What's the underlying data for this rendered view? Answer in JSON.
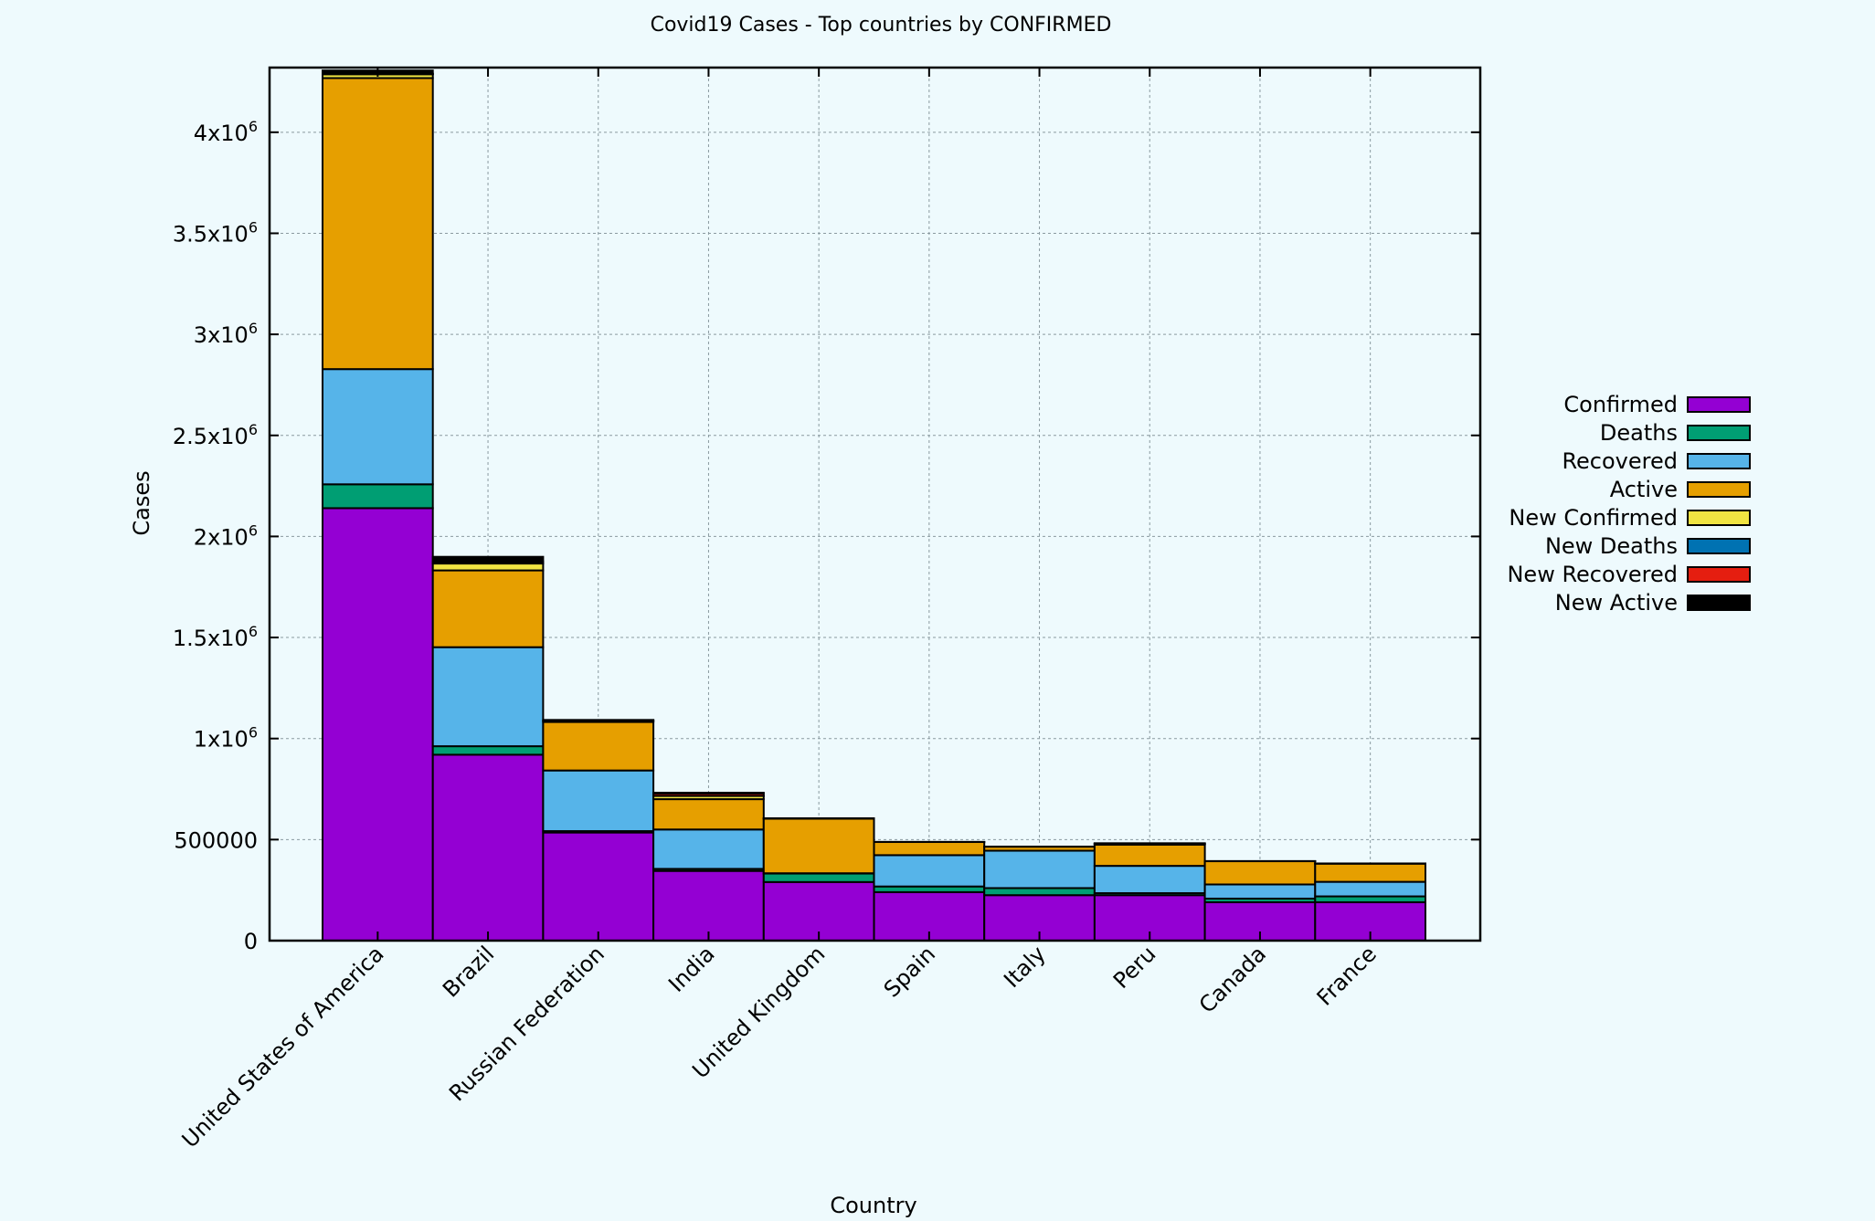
{
  "chart_data": {
    "type": "bar",
    "stacked": true,
    "title": "Covid19 Cases - Top countries by CONFIRMED",
    "xlabel": "Country",
    "ylabel": "Cases",
    "ylim": [
      0,
      4320000
    ],
    "grid": true,
    "legend_position": "right",
    "categories": [
      "United States of America",
      "Brazil",
      "Russian Federation",
      "India",
      "United Kingdom",
      "Spain",
      "Italy",
      "Peru",
      "Canada",
      "France"
    ],
    "y_ticks": [
      {
        "value": 0,
        "label": "0",
        "sup": ""
      },
      {
        "value": 500000,
        "label": "500000",
        "sup": ""
      },
      {
        "value": 1000000,
        "label": "1x10",
        "sup": "6"
      },
      {
        "value": 1500000,
        "label": "1.5x10",
        "sup": "6"
      },
      {
        "value": 2000000,
        "label": "2x10",
        "sup": "6"
      },
      {
        "value": 2500000,
        "label": "2.5x10",
        "sup": "6"
      },
      {
        "value": 3000000,
        "label": "3x10",
        "sup": "6"
      },
      {
        "value": 3500000,
        "label": "3.5x10",
        "sup": "6"
      },
      {
        "value": 4000000,
        "label": "4x10",
        "sup": "6"
      }
    ],
    "series": [
      {
        "name": "Confirmed",
        "color": "#9400d3",
        "values": [
          2140000,
          920000,
          535000,
          345000,
          290000,
          240000,
          225000,
          225000,
          190000,
          190000
        ]
      },
      {
        "name": "Deaths",
        "color": "#009e73",
        "values": [
          118000,
          42000,
          7000,
          10000,
          42000,
          28000,
          35000,
          10000,
          18000,
          29000
        ]
      },
      {
        "name": "Recovered",
        "color": "#56b4e9",
        "values": [
          570000,
          490000,
          300000,
          195000,
          1400,
          155000,
          185000,
          135000,
          70000,
          72000
        ]
      },
      {
        "name": "Active",
        "color": "#e69f00",
        "values": [
          1440000,
          380000,
          240000,
          150000,
          270000,
          65000,
          20000,
          105000,
          115000,
          90000
        ]
      },
      {
        "name": "New Confirmed",
        "color": "#f0e442",
        "values": [
          19000,
          34000,
          5000,
          16000,
          1000,
          300,
          200,
          3500,
          300,
          500
        ]
      },
      {
        "name": "New Deaths",
        "color": "#0072b2",
        "values": [
          500,
          1200,
          100,
          400,
          100,
          0,
          0,
          200,
          0,
          0
        ]
      },
      {
        "name": "New Recovered",
        "color": "#e51e10",
        "values": [
          3000,
          9000,
          3000,
          12000,
          0,
          0,
          100,
          2000,
          0,
          100
        ]
      },
      {
        "name": "New Active",
        "color": "#000000",
        "values": [
          15000,
          23000,
          2000,
          3500,
          1000,
          300,
          100,
          1300,
          300,
          400
        ]
      }
    ]
  }
}
